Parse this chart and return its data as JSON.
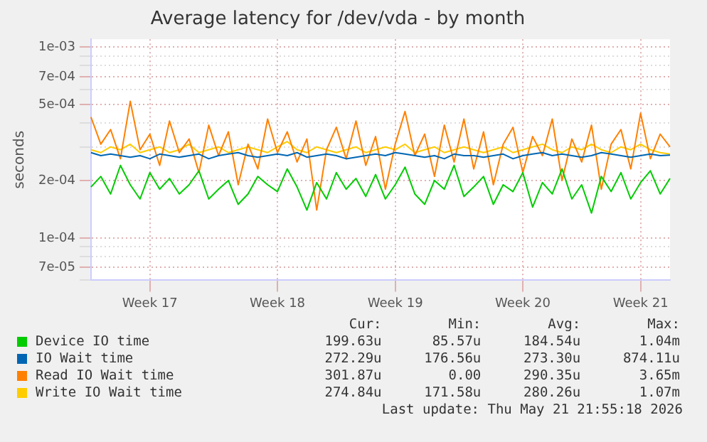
{
  "chart_data": {
    "type": "line",
    "title": "Average latency for /dev/vda - by month",
    "ylabel": "seconds",
    "log": "y",
    "grid": true,
    "legend": "bottom",
    "marker": "none",
    "line_style": "solid",
    "ylim": [
      6e-05,
      0.0011
    ],
    "yticks": [
      {
        "value": 6e-05,
        "label": null
      },
      {
        "value": 7e-05,
        "label": "7e-05"
      },
      {
        "value": 8e-05,
        "label": null
      },
      {
        "value": 9e-05,
        "label": null
      },
      {
        "value": 0.0001,
        "label": "1e-04"
      },
      {
        "value": 0.0002,
        "label": "2e-04"
      },
      {
        "value": 0.0003,
        "label": null
      },
      {
        "value": 0.0004,
        "label": null
      },
      {
        "value": 0.0005,
        "label": "5e-04"
      },
      {
        "value": 0.0006,
        "label": null
      },
      {
        "value": 0.0007,
        "label": "7e-04"
      },
      {
        "value": 0.0008,
        "label": null
      },
      {
        "value": 0.0009,
        "label": null
      },
      {
        "value": 0.001,
        "label": "1e-03"
      }
    ],
    "categories": [
      null,
      null,
      null,
      null,
      null,
      null,
      "Week 17",
      null,
      null,
      null,
      null,
      null,
      null,
      null,
      null,
      null,
      null,
      null,
      null,
      "Week 18",
      null,
      null,
      null,
      null,
      null,
      null,
      null,
      null,
      null,
      null,
      null,
      "Week 19",
      null,
      null,
      null,
      null,
      null,
      null,
      null,
      null,
      null,
      null,
      null,
      null,
      "Week 20",
      null,
      null,
      null,
      null,
      null,
      null,
      null,
      null,
      null,
      null,
      null,
      "Week 21",
      null,
      null,
      null
    ],
    "series": [
      {
        "name": "Device IO time",
        "color": "#00cc00",
        "values": [
          0.000185,
          0.00021,
          0.00017,
          0.00024,
          0.00019,
          0.00016,
          0.00022,
          0.00018,
          0.000205,
          0.00017,
          0.00019,
          0.000225,
          0.00016,
          0.00018,
          0.0002,
          0.00015,
          0.00017,
          0.00021,
          0.00019,
          0.000175,
          0.00023,
          0.000185,
          0.00014,
          0.000195,
          0.00016,
          0.00022,
          0.00018,
          0.000205,
          0.000165,
          0.000215,
          0.00016,
          0.00019,
          0.000235,
          0.00017,
          0.00015,
          0.0002,
          0.00018,
          0.00024,
          0.000165,
          0.000185,
          0.00021,
          0.00015,
          0.00019,
          0.000175,
          0.00022,
          0.000145,
          0.000195,
          0.00017,
          0.00023,
          0.00016,
          0.00019,
          0.000135,
          0.00021,
          0.000175,
          0.00022,
          0.00016,
          0.000195,
          0.000225,
          0.00017,
          0.000205
        ]
      },
      {
        "name": "IO Wait time",
        "color": "#0066b3",
        "values": [
          0.00028,
          0.00027,
          0.000275,
          0.00027,
          0.000265,
          0.00027,
          0.00026,
          0.000275,
          0.00027,
          0.000265,
          0.00027,
          0.000275,
          0.00026,
          0.00027,
          0.000275,
          0.00028,
          0.00027,
          0.000265,
          0.00027,
          0.000275,
          0.00027,
          0.00028,
          0.000265,
          0.00027,
          0.000275,
          0.00027,
          0.00026,
          0.000265,
          0.00027,
          0.000275,
          0.00027,
          0.00028,
          0.000275,
          0.00027,
          0.000265,
          0.00027,
          0.00026,
          0.000275,
          0.00027,
          0.00027,
          0.000265,
          0.00027,
          0.000275,
          0.00026,
          0.00027,
          0.000275,
          0.00028,
          0.00027,
          0.000275,
          0.00027,
          0.000265,
          0.00027,
          0.00028,
          0.000275,
          0.00027,
          0.000265,
          0.00027,
          0.000275,
          0.00027,
          0.000272
        ]
      },
      {
        "name": "Read IO Wait time",
        "color": "#ff8000",
        "values": [
          0.00043,
          0.00031,
          0.00037,
          0.00026,
          0.00052,
          0.00029,
          0.00035,
          0.00024,
          0.00041,
          0.00028,
          0.00033,
          0.00022,
          0.00039,
          0.00027,
          0.00036,
          0.00019,
          0.00031,
          0.00023,
          0.00042,
          0.00028,
          0.00036,
          0.00025,
          0.00033,
          0.00014,
          0.00029,
          0.00038,
          0.00026,
          0.00041,
          0.00024,
          0.00034,
          0.00018,
          0.00031,
          0.00046,
          0.00027,
          0.00035,
          0.00021,
          0.00039,
          0.00025,
          0.00042,
          0.00023,
          0.00036,
          0.00019,
          0.00031,
          0.00038,
          0.00022,
          0.00034,
          0.00027,
          0.00042,
          0.0002,
          0.00033,
          0.00025,
          0.00039,
          0.00018,
          0.00031,
          0.00037,
          0.00023,
          0.00045,
          0.00026,
          0.00035,
          0.0003
        ]
      },
      {
        "name": "Write IO Wait time",
        "color": "#ffcc00",
        "values": [
          0.00029,
          0.00028,
          0.0003,
          0.00029,
          0.00031,
          0.00028,
          0.00029,
          0.0003,
          0.00028,
          0.00029,
          0.00031,
          0.00028,
          0.00029,
          0.0003,
          0.00028,
          0.00029,
          0.0003,
          0.00029,
          0.00028,
          0.0003,
          0.00032,
          0.00029,
          0.00028,
          0.0003,
          0.00029,
          0.00028,
          0.00029,
          0.0003,
          0.00028,
          0.00029,
          0.0003,
          0.00029,
          0.00031,
          0.00028,
          0.00029,
          0.0003,
          0.00028,
          0.00029,
          0.0003,
          0.00029,
          0.00028,
          0.00029,
          0.0003,
          0.00028,
          0.00029,
          0.0003,
          0.00031,
          0.00029,
          0.00028,
          0.0003,
          0.00029,
          0.00031,
          0.00029,
          0.00028,
          0.0003,
          0.00029,
          0.00031,
          0.00029,
          0.00028,
          0.000275
        ]
      }
    ],
    "annotations": [
      "Cur:",
      "Min:",
      "Avg:",
      "Max:",
      "199.63u",
      "85.57u",
      "184.54u",
      "1.04m",
      "272.29u",
      "176.56u",
      "273.30u",
      "874.11u",
      "301.87u",
      "0.00",
      "290.35u",
      "3.65m",
      "274.84u",
      "171.58u",
      "280.26u",
      "1.07m",
      "Last update: Thu May 21 21:55:18 2026"
    ]
  }
}
